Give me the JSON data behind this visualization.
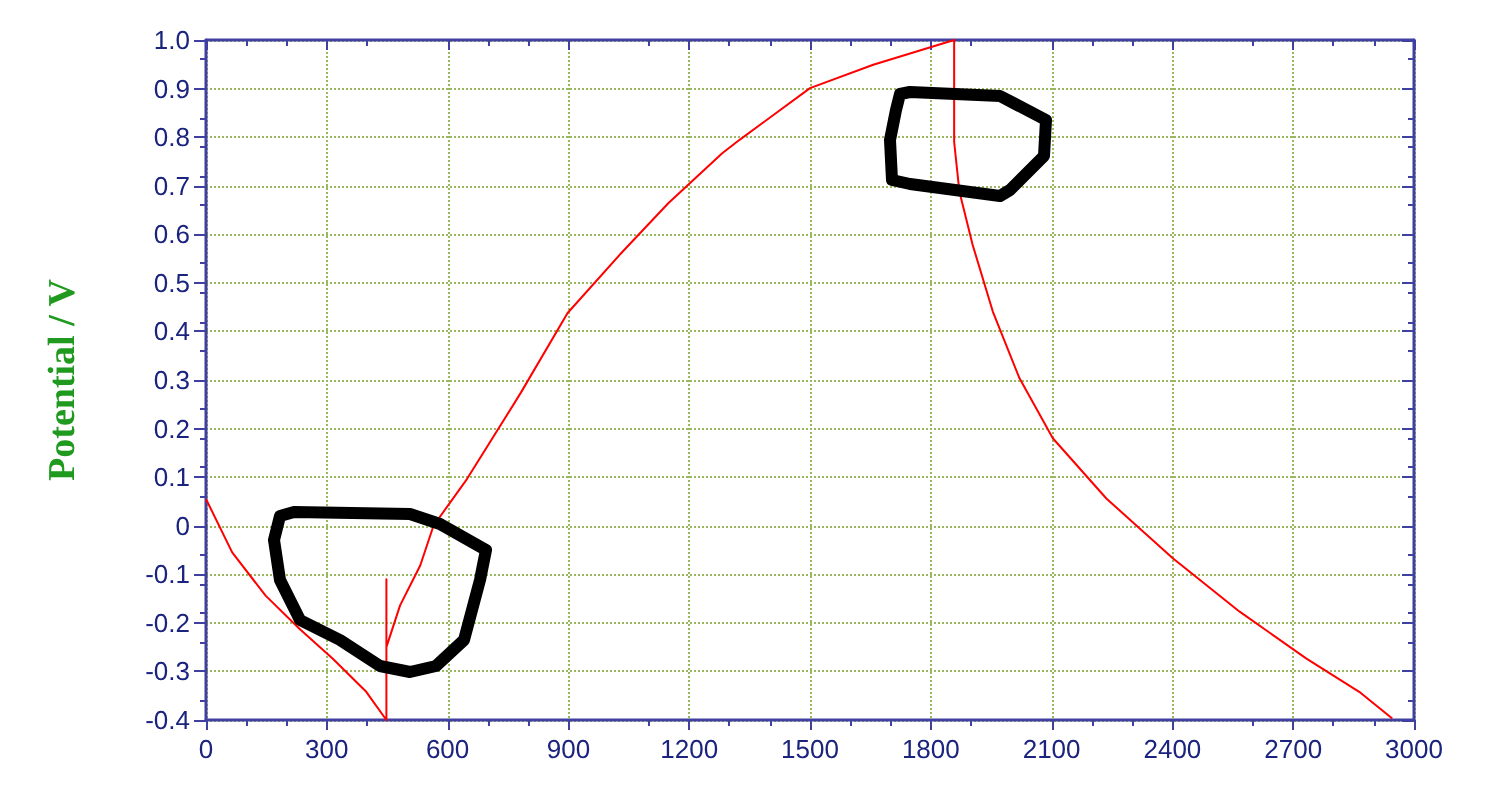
{
  "chart_data": {
    "type": "line",
    "ylabel": "Potential / V",
    "x": [
      0,
      65,
      148,
      232,
      315,
      398,
      448,
      448,
      448,
      482,
      532,
      565,
      648,
      782,
      898,
      1032,
      1148,
      1282,
      1326,
      1382,
      1500,
      1657,
      1858,
      1858,
      1858,
      1871,
      1904,
      1954,
      2020,
      2103,
      2236,
      2401,
      2567,
      2732,
      2864,
      2946
    ],
    "series": [
      {
        "color": "#ff0000",
        "values": [
          0.055,
          -0.055,
          -0.144,
          -0.212,
          -0.274,
          -0.342,
          -0.4,
          -0.11,
          -0.25,
          -0.164,
          -0.082,
          0,
          0.096,
          0.274,
          0.438,
          0.562,
          0.664,
          0.767,
          0.795,
          0.829,
          0.901,
          0.949,
          1.0,
          1.0,
          0.79,
          0.688,
          0.578,
          0.441,
          0.304,
          0.18,
          0.056,
          -0.067,
          -0.177,
          -0.273,
          -0.342,
          -0.397
        ]
      }
    ],
    "xlim": [
      0,
      3000
    ],
    "xticks": [
      0,
      300,
      600,
      900,
      1200,
      1500,
      1800,
      2100,
      2400,
      2700,
      3000
    ],
    "ylim": [
      -0.4,
      1.0
    ],
    "yticks": [
      -0.4,
      -0.3,
      -0.2,
      -0.1,
      0,
      0.1,
      0.2,
      0.3,
      0.4,
      0.5,
      0.6,
      0.7,
      0.8,
      0.9,
      {
        "value": 1.0,
        "label": "1.0"
      }
    ],
    "grid": true,
    "line_style": "solid",
    "marker": "none"
  }
}
